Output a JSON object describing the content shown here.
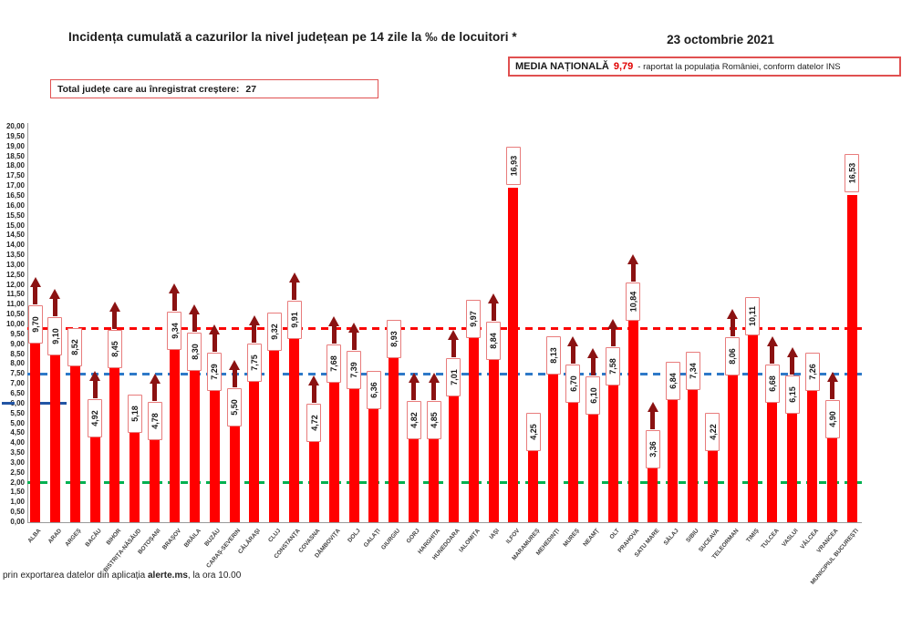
{
  "header": {
    "title": "Incidența cumulată a cazurilor la nivel județean pe 14 zile la ‰ de locuitori *",
    "date": "23 octombrie 2021",
    "national_average_label": "MEDIA NAȚIONALĂ",
    "national_average_value": "9,79",
    "national_average_note": "-  raportat la populația României, conform datelor INS",
    "growth_box_label": "Total județe care au înregistrat creștere:",
    "growth_box_value": "27"
  },
  "footer": {
    "text_prefix": "prin exportarea datelor din aplicația ",
    "text_bold": "alerte.ms",
    "text_suffix": ", la ora 10.00"
  },
  "chart_data": {
    "type": "bar",
    "title": "Incidența cumulată a cazurilor la nivel județean pe 14 zile la ‰ de locuitori",
    "xlabel": "",
    "ylabel": "",
    "ylim": [
      0,
      20
    ],
    "ytick_step": 0.5,
    "grid": false,
    "legend": false,
    "categories": [
      "ALBA",
      "ARAD",
      "ARGEȘ",
      "BACĂU",
      "BIHOR",
      "BISTRIȚA-NĂSĂUD",
      "BOTOȘANI",
      "BRAȘOV",
      "BRĂILA",
      "BUZĂU",
      "CARAȘ-SEVERIN",
      "CĂLĂRAȘI",
      "CLUJ",
      "CONSTANȚA",
      "COVASNA",
      "DÂMBOVIȚA",
      "DOLJ",
      "GALAȚI",
      "GIURGIU",
      "GORJ",
      "HARGHITA",
      "HUNEDOARA",
      "IALOMIȚA",
      "IAȘI",
      "ILFOV",
      "MARAMUREȘ",
      "MEHEDINȚI",
      "MUREȘ",
      "NEAMȚ",
      "OLT",
      "PRAHOVA",
      "SATU MARE",
      "SĂLAJ",
      "SIBIU",
      "SUCEAVA",
      "TELEORMAN",
      "TIMIȘ",
      "TULCEA",
      "VASLUI",
      "VÂLCEA",
      "VRANCEA",
      "MUNICIPIUL BUCUREȘTI"
    ],
    "values": [
      9.7,
      9.1,
      8.52,
      4.92,
      8.45,
      5.18,
      4.78,
      9.34,
      8.3,
      7.29,
      5.5,
      7.75,
      9.32,
      9.91,
      4.72,
      7.68,
      7.39,
      6.36,
      8.93,
      4.82,
      4.85,
      7.01,
      9.97,
      8.84,
      16.93,
      4.25,
      8.13,
      6.7,
      6.1,
      7.58,
      10.84,
      3.36,
      6.84,
      7.34,
      4.22,
      8.06,
      10.11,
      6.68,
      6.15,
      7.26,
      4.9,
      16.53
    ],
    "value_labels": [
      "9,70",
      "9,10",
      "8,52",
      "4,92",
      "8,45",
      "5,18",
      "4,78",
      "9,34",
      "8,30",
      "7,29",
      "5,50",
      "7,75",
      "9,32",
      "9,91",
      "4,72",
      "7,68",
      "7,39",
      "6,36",
      "8,93",
      "4,82",
      "4,85",
      "7,01",
      "9,97",
      "8,84",
      "16,93",
      "4,25",
      "8,13",
      "6,70",
      "6,10",
      "7,58",
      "10,84",
      "3,36",
      "6,84",
      "7,34",
      "4,22",
      "8,06",
      "10,11",
      "6,68",
      "6,15",
      "7,26",
      "4,90",
      "16,53"
    ],
    "increase_flags": [
      true,
      true,
      false,
      true,
      true,
      false,
      true,
      true,
      true,
      true,
      true,
      true,
      false,
      true,
      true,
      true,
      true,
      false,
      false,
      true,
      true,
      true,
      false,
      true,
      false,
      false,
      false,
      true,
      true,
      true,
      true,
      true,
      false,
      false,
      false,
      true,
      false,
      true,
      true,
      false,
      true,
      false
    ],
    "increase_total": 27,
    "reference_lines": [
      {
        "name": "media-nationala-line",
        "value": 9.79,
        "color": "#fb0606"
      },
      {
        "name": "prag-albastru-line",
        "value": 7.5,
        "color": "#2e79c8"
      },
      {
        "name": "prag-verde-line",
        "value": 2.0,
        "color": "#00b050"
      }
    ],
    "partial_line": {
      "name": "prag-albastru-inchis",
      "value": 6.0,
      "color": "#2255a4"
    },
    "colors": {
      "bar": "#ff0000",
      "arrow": "#8b1212",
      "label_border": "#e87c7c"
    }
  }
}
